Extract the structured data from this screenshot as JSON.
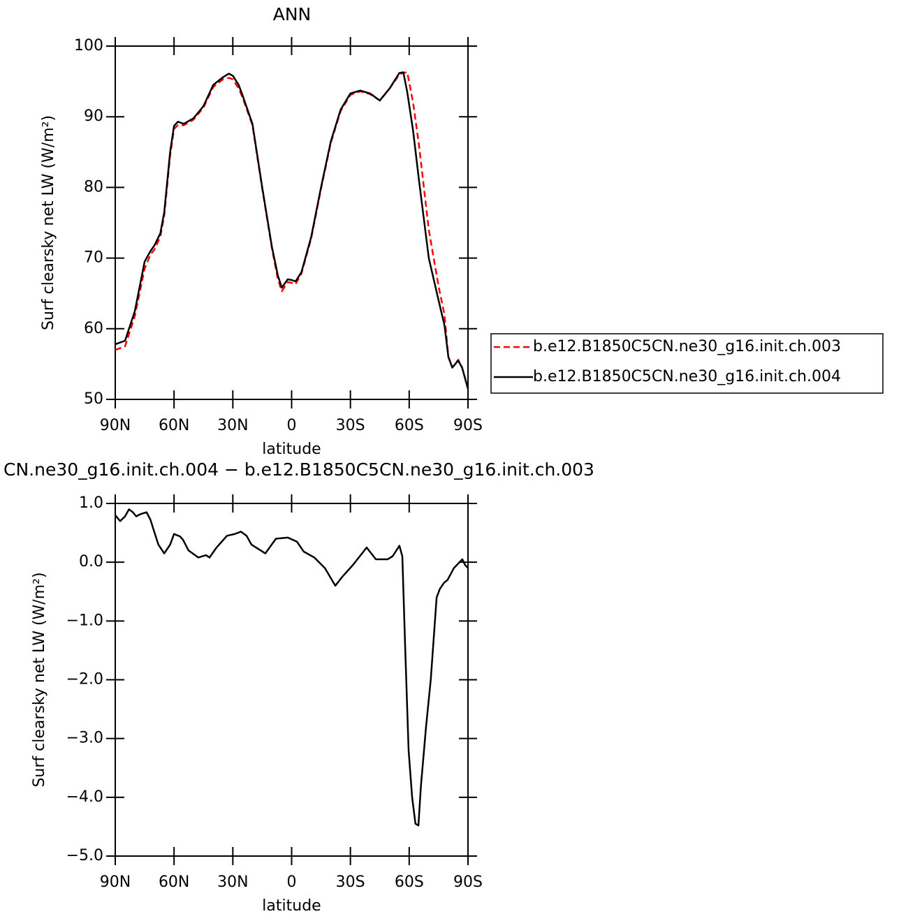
{
  "chart_data": [
    {
      "type": "line",
      "title": "ANN",
      "xlabel": "latitude",
      "ylabel": "Surf clearsky net LW (W/m²)",
      "x": [
        90,
        85,
        80,
        75,
        72,
        70,
        67,
        65,
        62,
        60,
        58,
        55,
        50,
        45,
        40,
        35,
        32,
        30,
        27,
        25,
        20,
        15,
        10,
        7,
        5,
        2,
        0,
        -2,
        -5,
        -10,
        -15,
        -20,
        -25,
        -30,
        -35,
        -40,
        -45,
        -50,
        -55,
        -57,
        -59,
        -62,
        -65,
        -70,
        -75,
        -78,
        -80,
        -82,
        -85,
        -87,
        -90
      ],
      "series": [
        {
          "name": "b.e12.B1850C5CN.ne30_g16.init.ch.003",
          "color": "#ff0000",
          "line_style": "dashed",
          "values": [
            57,
            57.5,
            61.8,
            68.5,
            70.5,
            71.2,
            73,
            76,
            84.5,
            88.3,
            88.8,
            88.8,
            89.6,
            91.3,
            94.2,
            95.3,
            95.5,
            95.3,
            94,
            92.7,
            88.8,
            79.8,
            71.3,
            67,
            65.3,
            66.6,
            66.5,
            66.3,
            67.8,
            72.8,
            79.8,
            86.3,
            90.8,
            93.1,
            93.6,
            93.2,
            92.3,
            94,
            96,
            96.2,
            96.3,
            92,
            86,
            74,
            66,
            62,
            56,
            54.5,
            55.6,
            54.5,
            51.5
          ]
        },
        {
          "name": "b.e12.B1850C5CN.ne30_g16.init.ch.004",
          "color": "#000000",
          "line_style": "solid",
          "values": [
            57.8,
            58.3,
            62.5,
            69.5,
            71,
            71.8,
            73.5,
            76.5,
            85,
            88.7,
            89.3,
            89,
            89.8,
            91.5,
            94.5,
            95.6,
            96.1,
            95.8,
            94.5,
            93,
            89,
            80,
            71.5,
            67.5,
            65.8,
            67,
            66.9,
            66.7,
            68,
            73,
            80,
            86.5,
            91,
            93.3,
            93.7,
            93.3,
            92.3,
            94,
            96.2,
            96.3,
            93.5,
            88,
            81,
            70,
            64,
            60.5,
            56,
            54.5,
            55.5,
            54.5,
            51.5
          ]
        }
      ],
      "xlim": [
        90,
        -90
      ],
      "xticks": [
        {
          "value": 90,
          "label": "90N"
        },
        {
          "value": 60,
          "label": "60N"
        },
        {
          "value": 30,
          "label": "30N"
        },
        0,
        {
          "value": -30,
          "label": "30S"
        },
        {
          "value": -60,
          "label": "60S"
        },
        {
          "value": -90,
          "label": "90S"
        }
      ],
      "ylim": [
        50,
        100
      ],
      "yticks": [
        50,
        60,
        70,
        80,
        90,
        100
      ],
      "legend": "right"
    },
    {
      "type": "line",
      "title": "CN.ne30_g16.init.ch.004 − b.e12.B1850C5CN.ne30_g16.init.ch.003",
      "xlabel": "latitude",
      "ylabel": "Surf clearsky net LW (W/m²)",
      "x": [
        90,
        87.5,
        85,
        83,
        81,
        79.3,
        77,
        74,
        72,
        70.4,
        68,
        65,
        62,
        60,
        57,
        55.4,
        52.6,
        47.6,
        43.7,
        41.9,
        38.3,
        33,
        29,
        25.9,
        23,
        20.5,
        13.4,
        8,
        2,
        -2.7,
        -6.2,
        -11.6,
        -17,
        -22.3,
        -25.8,
        -31.2,
        -38.3,
        -43,
        -49,
        -51.5,
        -55,
        -56.5,
        -58,
        -59.7,
        -61.5,
        -63.2,
        -64.7,
        -66,
        -68.6,
        -71,
        -74,
        -75.7,
        -77.8,
        -79.6,
        -82.8,
        -85.7,
        -87.1,
        -88.6,
        -90
      ],
      "values": [
        0.8,
        0.7,
        0.78,
        0.9,
        0.85,
        0.78,
        0.82,
        0.85,
        0.72,
        0.55,
        0.3,
        0.15,
        0.3,
        0.48,
        0.44,
        0.38,
        0.2,
        0.08,
        0.12,
        0.08,
        0.25,
        0.45,
        0.48,
        0.52,
        0.45,
        0.3,
        0.15,
        0.4,
        0.42,
        0.35,
        0.18,
        0.08,
        -0.1,
        -0.4,
        -0.25,
        -0.05,
        0.25,
        0.05,
        0.05,
        0.1,
        0.28,
        0.1,
        -1.5,
        -3.2,
        -4.0,
        -4.45,
        -4.48,
        -3.8,
        -2.8,
        -2.0,
        -0.6,
        -0.45,
        -0.35,
        -0.3,
        -0.1,
        0.0,
        0.05,
        -0.05,
        -0.1
      ],
      "color": "#000000",
      "line_style": "solid",
      "xlim": [
        90,
        -90
      ],
      "xticks": [
        {
          "value": 90,
          "label": "90N"
        },
        {
          "value": 60,
          "label": "60N"
        },
        {
          "value": 30,
          "label": "30N"
        },
        0,
        {
          "value": -30,
          "label": "30S"
        },
        {
          "value": -60,
          "label": "60S"
        },
        {
          "value": -90,
          "label": "90S"
        }
      ],
      "ylim": [
        -5,
        1
      ],
      "yticks": [
        {
          "value": -5,
          "label": "−5.0"
        },
        {
          "value": -4,
          "label": "−4.0"
        },
        {
          "value": -3,
          "label": "−3.0"
        },
        {
          "value": -2,
          "label": "−2.0"
        },
        {
          "value": -1,
          "label": "−1.0"
        },
        {
          "value": 0,
          "label": "0.0"
        },
        {
          "value": 1,
          "label": "1.0"
        }
      ]
    }
  ]
}
